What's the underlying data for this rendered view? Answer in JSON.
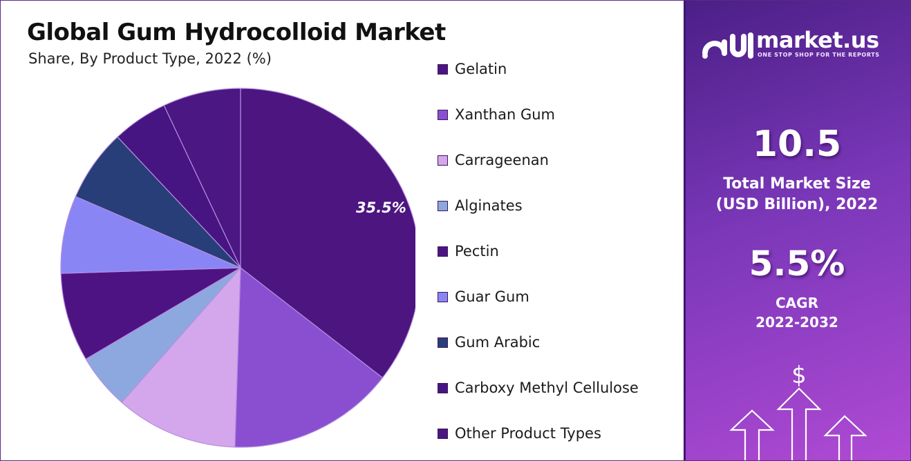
{
  "title": "Global Gum Hydrocolloid  Market",
  "subtitle": "Share, By Product Type, 2022 (%)",
  "brand": {
    "name": "market.us",
    "tagline": "ONE STOP SHOP FOR THE REPORTS"
  },
  "stats": {
    "market_size_value": "10.5",
    "market_size_label_line1": "Total Market Size",
    "market_size_label_line2": "(USD Billion), 2022",
    "cagr_value": "5.5%",
    "cagr_label_line1": "CAGR",
    "cagr_label_line2": "2022-2032",
    "currency_symbol": "$"
  },
  "chart_data": {
    "type": "pie",
    "categories": [
      "Gelatin",
      "Xanthan Gum",
      "Carrageenan",
      "Alginates",
      "Pectin",
      "Guar Gum",
      "Gum Arabic",
      "Carboxy Methyl Cellulose",
      "Other Product Types"
    ],
    "values": [
      35.5,
      15.0,
      11.0,
      5.0,
      8.0,
      7.0,
      6.5,
      5.0,
      7.0
    ],
    "data_labels": [
      "35.5%",
      "",
      "",
      "",
      "",
      "",
      "",
      "",
      ""
    ],
    "colors": [
      "#4c1580",
      "#8a4fd0",
      "#d4a6ec",
      "#8da8de",
      "#4e1383",
      "#8a85f5",
      "#273e78",
      "#471581",
      "#4b1782"
    ],
    "legend_placement": "right",
    "start_angle_deg": 0,
    "direction": "clockwise"
  }
}
